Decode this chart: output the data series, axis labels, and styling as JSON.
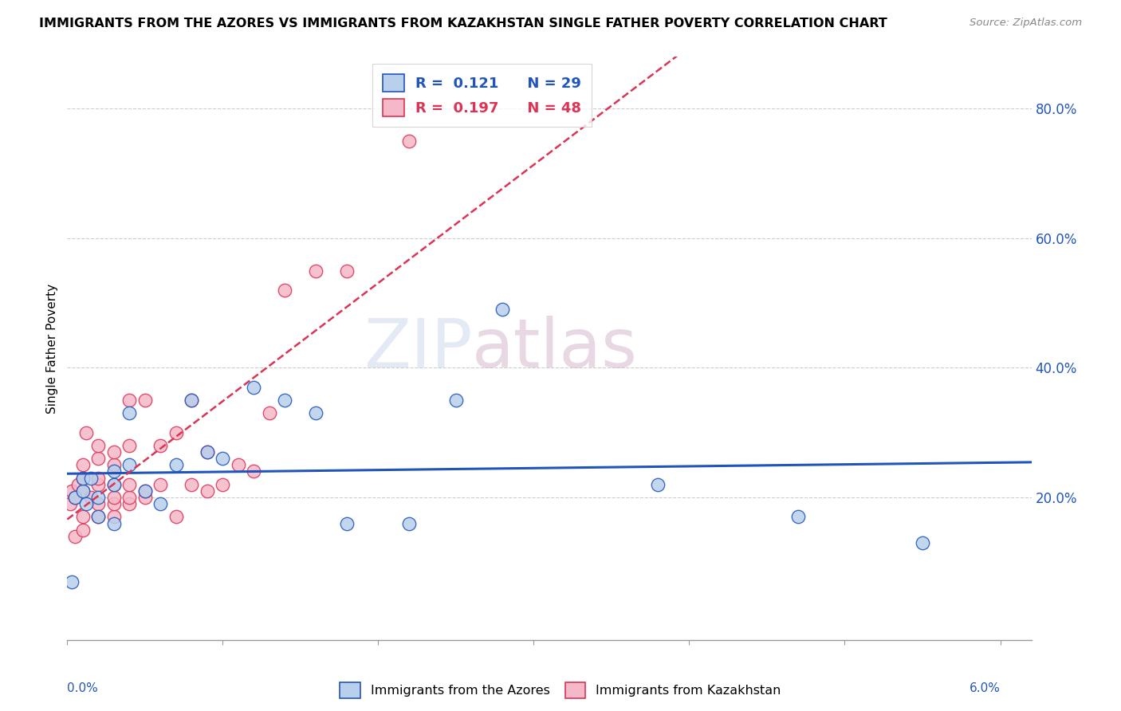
{
  "title": "IMMIGRANTS FROM THE AZORES VS IMMIGRANTS FROM KAZAKHSTAN SINGLE FATHER POVERTY CORRELATION CHART",
  "source": "Source: ZipAtlas.com",
  "ylabel": "Single Father Poverty",
  "xlim": [
    0.0,
    0.062
  ],
  "ylim": [
    -0.02,
    0.88
  ],
  "color_azores": "#b8d0eb",
  "color_kazakhstan": "#f5b8c8",
  "line_color_azores": "#2255bb",
  "line_color_kazakhstan": "#dd3355",
  "watermark_zip": "ZIP",
  "watermark_atlas": "atlas",
  "R_azores": 0.121,
  "N_azores": 29,
  "R_kazakhstan": 0.197,
  "N_kazakhstan": 48,
  "legend_label_bottom1": "Immigrants from the Azores",
  "legend_label_bottom2": "Immigrants from Kazakhstan",
  "azores_x": [
    0.0003,
    0.0005,
    0.001,
    0.001,
    0.0012,
    0.0015,
    0.002,
    0.002,
    0.003,
    0.003,
    0.003,
    0.004,
    0.004,
    0.005,
    0.006,
    0.007,
    0.008,
    0.009,
    0.01,
    0.012,
    0.014,
    0.016,
    0.018,
    0.022,
    0.025,
    0.028,
    0.038,
    0.047,
    0.055
  ],
  "azores_y": [
    0.07,
    0.2,
    0.21,
    0.23,
    0.19,
    0.23,
    0.2,
    0.17,
    0.22,
    0.24,
    0.16,
    0.33,
    0.25,
    0.21,
    0.19,
    0.25,
    0.35,
    0.27,
    0.26,
    0.37,
    0.35,
    0.33,
    0.16,
    0.16,
    0.35,
    0.49,
    0.22,
    0.17,
    0.13
  ],
  "kazakhstan_x": [
    0.0002,
    0.0003,
    0.0005,
    0.0005,
    0.0007,
    0.001,
    0.001,
    0.001,
    0.001,
    0.001,
    0.0012,
    0.0015,
    0.002,
    0.002,
    0.002,
    0.002,
    0.002,
    0.002,
    0.003,
    0.003,
    0.003,
    0.003,
    0.003,
    0.003,
    0.004,
    0.004,
    0.004,
    0.004,
    0.004,
    0.005,
    0.005,
    0.005,
    0.006,
    0.006,
    0.007,
    0.007,
    0.008,
    0.008,
    0.009,
    0.009,
    0.01,
    0.011,
    0.012,
    0.013,
    0.014,
    0.016,
    0.018,
    0.022
  ],
  "kazakhstan_y": [
    0.19,
    0.21,
    0.14,
    0.2,
    0.22,
    0.15,
    0.17,
    0.21,
    0.23,
    0.25,
    0.3,
    0.2,
    0.17,
    0.19,
    0.22,
    0.23,
    0.26,
    0.28,
    0.17,
    0.19,
    0.2,
    0.22,
    0.25,
    0.27,
    0.19,
    0.2,
    0.22,
    0.28,
    0.35,
    0.2,
    0.21,
    0.35,
    0.22,
    0.28,
    0.17,
    0.3,
    0.22,
    0.35,
    0.21,
    0.27,
    0.22,
    0.25,
    0.24,
    0.33,
    0.52,
    0.55,
    0.55,
    0.75
  ]
}
